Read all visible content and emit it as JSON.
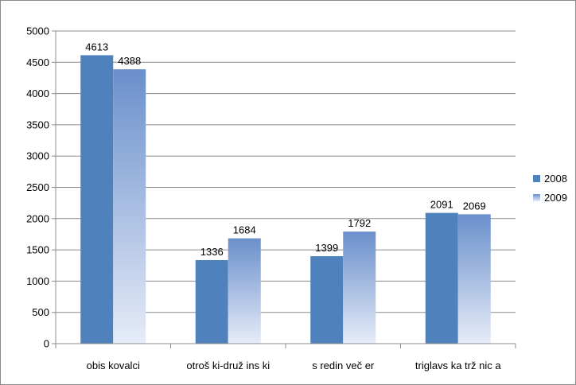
{
  "chart_data": {
    "type": "bar",
    "categories": [
      "obis kovalci",
      "otroš ki-druž ins ki",
      "s redin več er",
      "triglavs ka trž nic a"
    ],
    "series": [
      {
        "name": "2008",
        "values": [
          4613,
          1336,
          1399,
          2091
        ]
      },
      {
        "name": "2009",
        "values": [
          4388,
          1684,
          1792,
          2069
        ]
      }
    ],
    "ylim": [
      0,
      5000
    ],
    "yticks": [
      0,
      500,
      1000,
      1500,
      2000,
      2500,
      3000,
      3500,
      4000,
      4500,
      5000
    ],
    "grid": true,
    "legend": "right",
    "colors": {
      "series_2008": "#4f81bd",
      "series_2009_top": "#6a8fcb",
      "series_2009_bottom": "#e6ecf8",
      "gridline": "#8c8c8c"
    }
  }
}
